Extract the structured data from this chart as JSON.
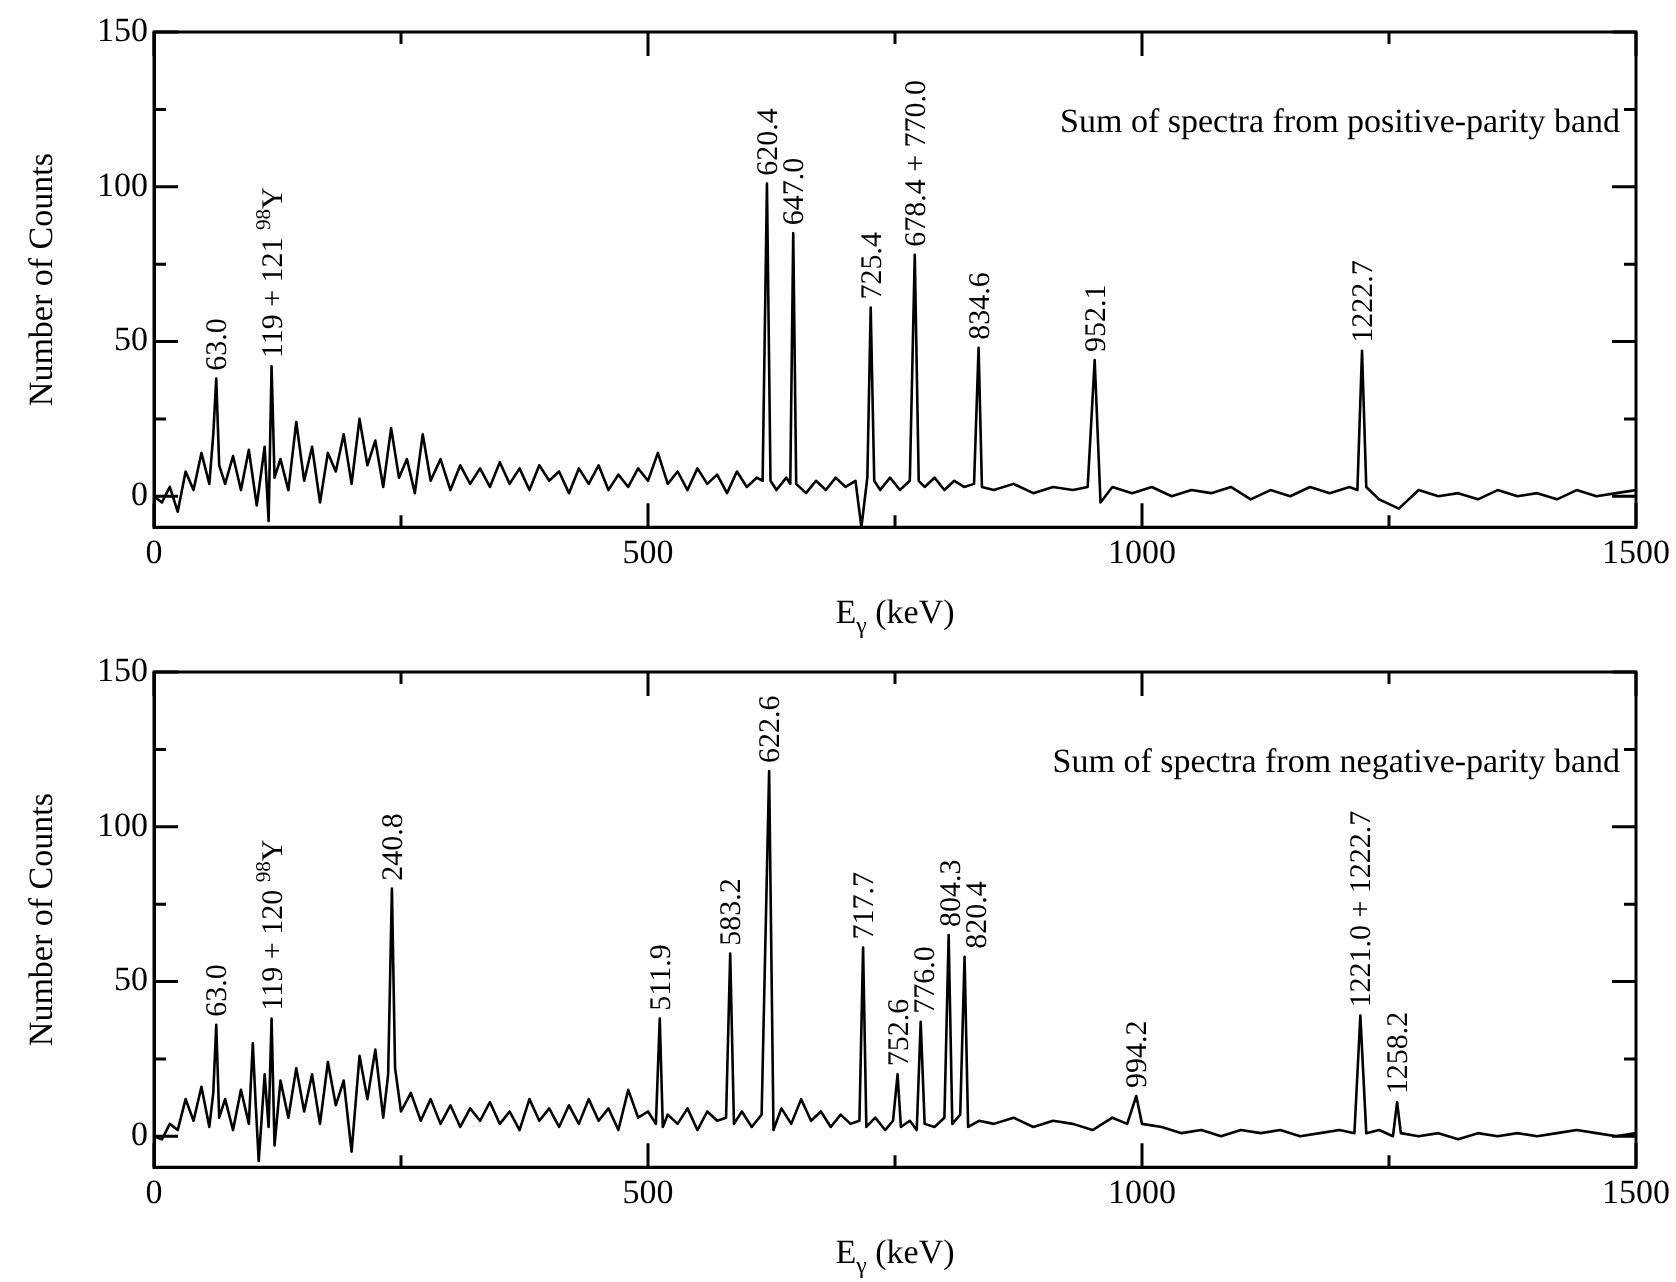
{
  "chart_data": [
    {
      "type": "line",
      "xlabel": "E$_{γ}$ (keV)",
      "ylabel": "Number of Counts",
      "color": "#000000",
      "xlim": [
        0,
        1500
      ],
      "ylim": [
        -10,
        150
      ],
      "xticks": [
        0,
        {
          "value": 250,
          "label": null
        },
        500,
        {
          "value": 750,
          "label": null
        },
        1000,
        {
          "value": 1250,
          "label": null
        },
        1500
      ],
      "yticks": [
        0,
        {
          "value": 25,
          "label": null
        },
        50,
        {
          "value": 75,
          "label": null
        },
        100,
        {
          "value": 125,
          "label": null
        },
        150
      ],
      "x": [
        0,
        8,
        16,
        24,
        32,
        40,
        48,
        56,
        60,
        63,
        66,
        72,
        80,
        88,
        96,
        104,
        112,
        116,
        119,
        122,
        128,
        136,
        144,
        152,
        160,
        168,
        176,
        184,
        192,
        200,
        208,
        216,
        224,
        232,
        240,
        248,
        256,
        264,
        272,
        280,
        290,
        300,
        310,
        320,
        330,
        340,
        350,
        360,
        370,
        380,
        390,
        400,
        410,
        420,
        430,
        440,
        450,
        460,
        470,
        480,
        490,
        500,
        510,
        520,
        530,
        540,
        550,
        560,
        570,
        580,
        590,
        600,
        610,
        616,
        620.4,
        624,
        630,
        640,
        644,
        647,
        650,
        660,
        670,
        680,
        690,
        700,
        710,
        716,
        722,
        725.4,
        729,
        735,
        745,
        755,
        765,
        770,
        774,
        780,
        790,
        800,
        810,
        820,
        830,
        834.6,
        838,
        850,
        870,
        890,
        910,
        930,
        945,
        952.1,
        958,
        970,
        990,
        1010,
        1030,
        1050,
        1070,
        1090,
        1110,
        1130,
        1150,
        1170,
        1190,
        1210,
        1218,
        1222.7,
        1227,
        1240,
        1260,
        1280,
        1300,
        1320,
        1340,
        1360,
        1380,
        1400,
        1420,
        1440,
        1460,
        1480,
        1500
      ],
      "values": [
        0,
        -2,
        3,
        -5,
        8,
        2,
        14,
        4,
        20,
        38,
        10,
        4,
        13,
        2,
        15,
        -3,
        16,
        -8,
        42,
        6,
        12,
        2,
        24,
        5,
        16,
        -2,
        14,
        8,
        20,
        4,
        25,
        10,
        18,
        3,
        22,
        6,
        12,
        1,
        20,
        5,
        12,
        2,
        10,
        4,
        9,
        3,
        11,
        4,
        9,
        2,
        10,
        5,
        8,
        1,
        9,
        4,
        10,
        2,
        7,
        3,
        9,
        5,
        14,
        4,
        8,
        2,
        9,
        4,
        7,
        1,
        8,
        3,
        6,
        5,
        101,
        5,
        2,
        6,
        4,
        85,
        4,
        1,
        5,
        2,
        6,
        3,
        5,
        -10,
        6,
        61,
        5,
        2,
        6,
        2,
        5,
        78,
        5,
        3,
        6,
        2,
        5,
        3,
        4,
        48,
        3,
        2,
        4,
        1,
        3,
        2,
        3,
        44,
        -2,
        3,
        1,
        3,
        0,
        2,
        1,
        3,
        -1,
        2,
        0,
        3,
        1,
        3,
        2,
        47,
        3,
        -1,
        -4,
        2,
        0,
        1,
        -1,
        2,
        0,
        1,
        -1,
        2,
        0,
        1,
        2
      ],
      "annotations": [
        "Sum of spectra from positive-parity band",
        {
          "text": "63.0",
          "x": 63,
          "y": 38
        },
        {
          "text": "119 + 121 $^{98}$Y",
          "x": 119,
          "y": 42
        },
        {
          "text": "620.4",
          "x": 620.4,
          "y": 101
        },
        {
          "text": "647.0",
          "x": 647,
          "y": 85
        },
        {
          "text": "725.4",
          "x": 725.4,
          "y": 61
        },
        {
          "text": "678.4 + 770.0",
          "x": 770,
          "y": 78
        },
        {
          "text": "834.6",
          "x": 834.6,
          "y": 48
        },
        {
          "text": "952.1",
          "x": 952.1,
          "y": 44
        },
        {
          "text": "1222.7",
          "x": 1222.7,
          "y": 47
        }
      ]
    },
    {
      "type": "line",
      "xlabel": "E$_{γ}$ (keV)",
      "ylabel": "Number of Counts",
      "color": "#000000",
      "xlim": [
        0,
        1500
      ],
      "ylim": [
        -10,
        150
      ],
      "xticks": [
        0,
        {
          "value": 250,
          "label": null
        },
        500,
        {
          "value": 750,
          "label": null
        },
        1000,
        {
          "value": 1250,
          "label": null
        },
        1500
      ],
      "yticks": [
        0,
        {
          "value": 25,
          "label": null
        },
        50,
        {
          "value": 75,
          "label": null
        },
        100,
        {
          "value": 125,
          "label": null
        },
        150
      ],
      "x": [
        0,
        8,
        16,
        24,
        32,
        40,
        48,
        56,
        60,
        63,
        66,
        72,
        80,
        88,
        96,
        100,
        103,
        106,
        112,
        116,
        119,
        122,
        128,
        136,
        144,
        152,
        160,
        168,
        176,
        184,
        192,
        200,
        208,
        216,
        224,
        232,
        237,
        240.8,
        244,
        250,
        260,
        270,
        280,
        290,
        300,
        310,
        320,
        330,
        340,
        350,
        360,
        370,
        380,
        390,
        400,
        410,
        420,
        430,
        440,
        450,
        460,
        470,
        480,
        490,
        500,
        508,
        511.9,
        515,
        520,
        530,
        540,
        550,
        560,
        570,
        579,
        583.2,
        587,
        595,
        605,
        615,
        622.6,
        627,
        635,
        645,
        655,
        665,
        675,
        685,
        695,
        705,
        714,
        717.7,
        721,
        730,
        740,
        748,
        752.6,
        756,
        765,
        772,
        776,
        780,
        790,
        800,
        804.3,
        808,
        816,
        820.4,
        824,
        835,
        850,
        870,
        890,
        910,
        930,
        950,
        970,
        985,
        994.2,
        1000,
        1020,
        1040,
        1060,
        1080,
        1100,
        1120,
        1140,
        1160,
        1180,
        1200,
        1215,
        1221,
        1227,
        1240,
        1254,
        1258.2,
        1262,
        1280,
        1300,
        1320,
        1340,
        1360,
        1380,
        1400,
        1420,
        1440,
        1460,
        1480,
        1500
      ],
      "values": [
        0,
        -1,
        4,
        2,
        12,
        5,
        16,
        3,
        14,
        36,
        6,
        12,
        2,
        15,
        4,
        30,
        10,
        -8,
        20,
        3,
        38,
        -3,
        18,
        6,
        22,
        8,
        20,
        4,
        24,
        10,
        18,
        -5,
        26,
        12,
        28,
        6,
        20,
        80,
        22,
        8,
        14,
        5,
        12,
        4,
        10,
        3,
        9,
        5,
        11,
        4,
        8,
        2,
        12,
        5,
        9,
        3,
        10,
        4,
        12,
        5,
        9,
        2,
        15,
        6,
        8,
        4,
        38,
        3,
        7,
        4,
        9,
        2,
        8,
        5,
        6,
        59,
        4,
        8,
        3,
        7,
        118,
        2,
        9,
        4,
        12,
        5,
        8,
        3,
        7,
        4,
        5,
        61,
        3,
        6,
        2,
        5,
        20,
        3,
        5,
        2,
        37,
        4,
        3,
        6,
        65,
        4,
        7,
        58,
        3,
        5,
        4,
        6,
        3,
        5,
        4,
        2,
        6,
        4,
        13,
        4,
        3,
        1,
        2,
        0,
        2,
        1,
        2,
        0,
        1,
        2,
        1,
        39,
        1,
        2,
        0,
        11,
        1,
        0,
        1,
        -1,
        1,
        0,
        1,
        0,
        1,
        2,
        1,
        0,
        1
      ],
      "annotations": [
        "Sum of spectra from negative-parity band",
        {
          "text": "63.0",
          "x": 63,
          "y": 36
        },
        {
          "text": "119 + 120 $^{98}$Y",
          "x": 119,
          "y": 38
        },
        {
          "text": "240.8",
          "x": 240.8,
          "y": 80
        },
        {
          "text": "511.9",
          "x": 511.9,
          "y": 38
        },
        {
          "text": "583.2",
          "x": 583.2,
          "y": 59
        },
        {
          "text": "622.6",
          "x": 622.6,
          "y": 118
        },
        {
          "text": "717.7",
          "x": 717.7,
          "y": 61
        },
        {
          "text": "752.6",
          "x": 752.6,
          "y": 20
        },
        {
          "text": "776.0",
          "x": 776,
          "y": 37
        },
        {
          "text": "804.3",
          "x": 804.3,
          "y": 65
        },
        {
          "text": "820.4",
          "x": 820.4,
          "y": 58
        },
        {
          "text": "994.2",
          "x": 994.2,
          "y": 13
        },
        {
          "text": "1221.0 + 1222.7",
          "x": 1221,
          "y": 39
        },
        {
          "text": "1258.2",
          "x": 1258.2,
          "y": 11
        }
      ]
    }
  ]
}
